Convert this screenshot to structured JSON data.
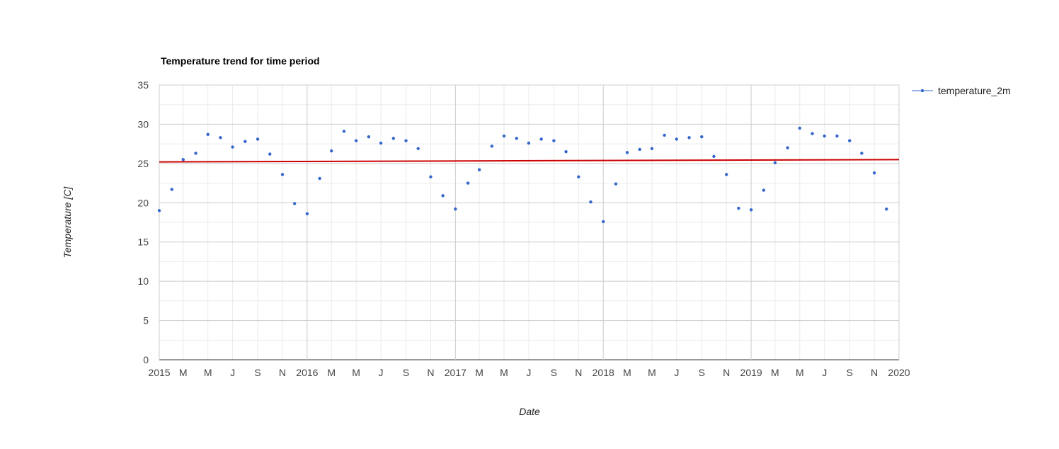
{
  "chart_data": {
    "type": "scatter",
    "title": "Temperature trend for time period",
    "xlabel": "Date",
    "ylabel": "Temperature [C]",
    "xlim": [
      "2015-01-01",
      "2020-01-01"
    ],
    "ylim": [
      0,
      35
    ],
    "y_ticks": [
      0,
      5,
      10,
      15,
      20,
      25,
      30,
      35
    ],
    "x_ticks": [
      {
        "date": "2015-01-01",
        "label": "2015"
      },
      {
        "date": "2015-03-01",
        "label": "M"
      },
      {
        "date": "2015-05-01",
        "label": "M"
      },
      {
        "date": "2015-07-01",
        "label": "J"
      },
      {
        "date": "2015-09-01",
        "label": "S"
      },
      {
        "date": "2015-11-01",
        "label": "N"
      },
      {
        "date": "2016-01-01",
        "label": "2016"
      },
      {
        "date": "2016-03-01",
        "label": "M"
      },
      {
        "date": "2016-05-01",
        "label": "M"
      },
      {
        "date": "2016-07-01",
        "label": "J"
      },
      {
        "date": "2016-09-01",
        "label": "S"
      },
      {
        "date": "2016-11-01",
        "label": "N"
      },
      {
        "date": "2017-01-01",
        "label": "2017"
      },
      {
        "date": "2017-03-01",
        "label": "M"
      },
      {
        "date": "2017-05-01",
        "label": "M"
      },
      {
        "date": "2017-07-01",
        "label": "J"
      },
      {
        "date": "2017-09-01",
        "label": "S"
      },
      {
        "date": "2017-11-01",
        "label": "N"
      },
      {
        "date": "2018-01-01",
        "label": "2018"
      },
      {
        "date": "2018-03-01",
        "label": "M"
      },
      {
        "date": "2018-05-01",
        "label": "M"
      },
      {
        "date": "2018-07-01",
        "label": "J"
      },
      {
        "date": "2018-09-01",
        "label": "S"
      },
      {
        "date": "2018-11-01",
        "label": "N"
      },
      {
        "date": "2019-01-01",
        "label": "2019"
      },
      {
        "date": "2019-03-01",
        "label": "M"
      },
      {
        "date": "2019-05-01",
        "label": "M"
      },
      {
        "date": "2019-07-01",
        "label": "J"
      },
      {
        "date": "2019-09-01",
        "label": "S"
      },
      {
        "date": "2019-11-01",
        "label": "N"
      },
      {
        "date": "2020-01-01",
        "label": "2020"
      }
    ],
    "grid": true,
    "legend": {
      "position": "right",
      "entries": [
        "temperature_2m"
      ]
    },
    "series": [
      {
        "name": "temperature_2m",
        "color": "#3366cc",
        "x": [
          "2015-01-01",
          "2015-02-01",
          "2015-03-01",
          "2015-04-01",
          "2015-05-01",
          "2015-06-01",
          "2015-07-01",
          "2015-08-01",
          "2015-09-01",
          "2015-10-01",
          "2015-11-01",
          "2015-12-01",
          "2016-01-01",
          "2016-02-01",
          "2016-03-01",
          "2016-04-01",
          "2016-05-01",
          "2016-06-01",
          "2016-07-01",
          "2016-08-01",
          "2016-09-01",
          "2016-10-01",
          "2016-11-01",
          "2016-12-01",
          "2017-01-01",
          "2017-02-01",
          "2017-03-01",
          "2017-04-01",
          "2017-05-01",
          "2017-06-01",
          "2017-07-01",
          "2017-08-01",
          "2017-09-01",
          "2017-10-01",
          "2017-11-01",
          "2017-12-01",
          "2018-01-01",
          "2018-02-01",
          "2018-03-01",
          "2018-04-01",
          "2018-05-01",
          "2018-06-01",
          "2018-07-01",
          "2018-08-01",
          "2018-09-01",
          "2018-10-01",
          "2018-11-01",
          "2018-12-01",
          "2019-01-01",
          "2019-02-01",
          "2019-03-01",
          "2019-04-01",
          "2019-05-01",
          "2019-06-01",
          "2019-07-01",
          "2019-08-01",
          "2019-09-01",
          "2019-10-01",
          "2019-11-01",
          "2019-12-01"
        ],
        "y": [
          19.0,
          21.7,
          25.5,
          26.3,
          28.7,
          28.3,
          27.1,
          27.8,
          28.1,
          26.2,
          23.6,
          19.9,
          18.6,
          23.1,
          26.6,
          29.1,
          27.9,
          28.4,
          27.6,
          28.2,
          27.9,
          26.9,
          23.3,
          20.9,
          19.2,
          22.5,
          24.2,
          27.2,
          28.5,
          28.2,
          27.6,
          28.1,
          27.9,
          26.5,
          23.3,
          20.1,
          17.6,
          22.4,
          26.4,
          26.8,
          26.9,
          28.6,
          28.1,
          28.3,
          28.4,
          25.9,
          23.6,
          19.3,
          19.1,
          21.6,
          25.1,
          27.0,
          29.5,
          28.8,
          28.5,
          28.5,
          27.9,
          26.3,
          23.8,
          19.2
        ]
      },
      {
        "type": "trendline",
        "color": "#cc0000",
        "x": [
          "2015-01-01",
          "2020-01-01"
        ],
        "y": [
          25.2,
          25.5
        ]
      }
    ]
  }
}
